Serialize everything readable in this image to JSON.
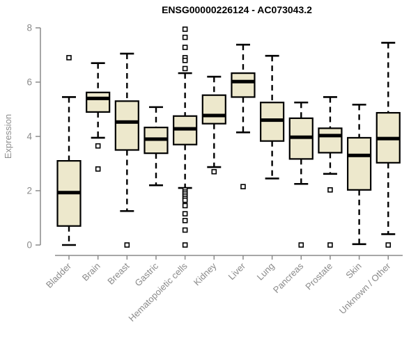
{
  "chart_data": {
    "type": "boxplot",
    "title": "ENSG00000226124 - AC073043.2",
    "ylabel": "Expression",
    "xlabel": "",
    "ylim": [
      0,
      8
    ],
    "yticks": [
      0,
      2,
      4,
      6,
      8
    ],
    "grid": false,
    "legend_position": "none",
    "colors": {
      "box_fill": "#EDE8CC",
      "box_stroke": "#000000",
      "median": "#000000",
      "axis": "#8a8a8a",
      "tick_text": "#8a8a8a",
      "title_text": "#000000",
      "background": "#FFFFFF"
    },
    "categories": [
      "Bladder",
      "Brain",
      "Breast",
      "Gastric",
      "Hematopoietic cells",
      "Kidney",
      "Liver",
      "Lung",
      "Pancreas",
      "Prostate",
      "Skin",
      "Unknown / Other"
    ],
    "series": [
      {
        "name": "Bladder",
        "whisker_low": 0.0,
        "q1": 0.7,
        "median": 1.93,
        "q3": 3.1,
        "whisker_high": 5.45,
        "outliers": [
          6.9
        ]
      },
      {
        "name": "Brain",
        "whisker_low": 3.95,
        "q1": 4.9,
        "median": 5.4,
        "q3": 5.62,
        "whisker_high": 6.7,
        "outliers": [
          3.65,
          2.8
        ]
      },
      {
        "name": "Breast",
        "whisker_low": 1.25,
        "q1": 3.5,
        "median": 4.53,
        "q3": 5.3,
        "whisker_high": 7.05,
        "outliers": [
          0.0
        ]
      },
      {
        "name": "Gastric",
        "whisker_low": 2.2,
        "q1": 3.38,
        "median": 3.9,
        "q3": 4.33,
        "whisker_high": 5.08,
        "outliers": []
      },
      {
        "name": "Hematopoietic cells",
        "whisker_low": 2.1,
        "q1": 3.7,
        "median": 4.28,
        "q3": 4.75,
        "whisker_high": 6.33,
        "outliers": [
          7.95,
          7.65,
          7.28,
          6.9,
          6.8,
          6.5,
          2.03,
          1.95,
          1.88,
          1.8,
          1.72,
          1.65,
          1.45,
          1.15,
          0.9,
          0.55,
          0.0
        ]
      },
      {
        "name": "Kidney",
        "whisker_low": 2.87,
        "q1": 4.47,
        "median": 4.77,
        "q3": 5.52,
        "whisker_high": 6.2,
        "outliers": [
          2.7
        ]
      },
      {
        "name": "Liver",
        "whisker_low": 4.15,
        "q1": 5.45,
        "median": 6.02,
        "q3": 6.33,
        "whisker_high": 7.38,
        "outliers": [
          2.15
        ]
      },
      {
        "name": "Lung",
        "whisker_low": 2.45,
        "q1": 3.83,
        "median": 4.6,
        "q3": 5.25,
        "whisker_high": 6.97,
        "outliers": []
      },
      {
        "name": "Pancreas",
        "whisker_low": 2.25,
        "q1": 3.17,
        "median": 3.97,
        "q3": 4.67,
        "whisker_high": 5.25,
        "outliers": [
          0.0
        ]
      },
      {
        "name": "Prostate",
        "whisker_low": 2.62,
        "q1": 3.4,
        "median": 4.03,
        "q3": 4.3,
        "whisker_high": 5.45,
        "outliers": [
          2.03,
          0.0
        ]
      },
      {
        "name": "Skin",
        "whisker_low": 0.03,
        "q1": 2.03,
        "median": 3.3,
        "q3": 3.95,
        "whisker_high": 5.17,
        "outliers": []
      },
      {
        "name": "Unknown / Other",
        "whisker_low": 0.4,
        "q1": 3.03,
        "median": 3.92,
        "q3": 4.87,
        "whisker_high": 7.45,
        "outliers": [
          0.0
        ]
      }
    ]
  }
}
